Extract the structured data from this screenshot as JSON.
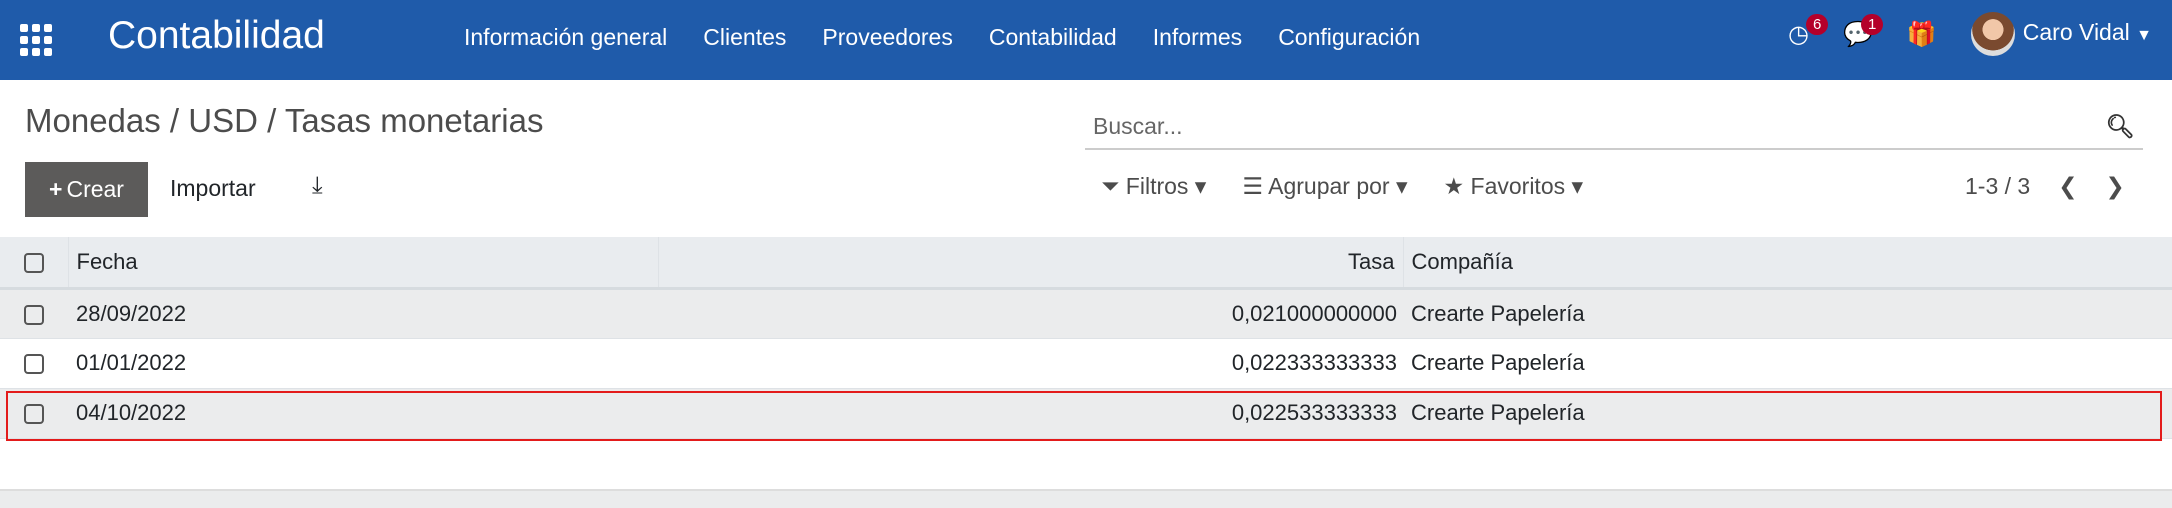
{
  "navbar": {
    "app_title": "Contabilidad",
    "menu": [
      "Información general",
      "Clientes",
      "Proveedores",
      "Contabilidad",
      "Informes",
      "Configuración"
    ],
    "activity_count": "6",
    "message_count": "1",
    "user": "Caro Vidal",
    "color": "#1f5baa"
  },
  "breadcrumb": "Monedas / USD / Tasas monetarias",
  "search": {
    "placeholder": "Buscar..."
  },
  "toolbar": {
    "create": "Crear",
    "import": "Importar"
  },
  "filters": {
    "filters": "Filtros",
    "group_by": "Agrupar por",
    "favorites": "Favoritos"
  },
  "pager": "1-3 / 3",
  "table": {
    "headers": [
      "Fecha",
      "Tasa",
      "Compañía"
    ],
    "rows": [
      [
        "28/09/2022",
        "0,021000000000",
        "Crearte Papelería"
      ],
      [
        "01/01/2022",
        "0,022333333333",
        "Crearte Papelería"
      ],
      [
        "04/10/2022",
        "0,022533333333",
        "Crearte Papelería"
      ]
    ]
  }
}
